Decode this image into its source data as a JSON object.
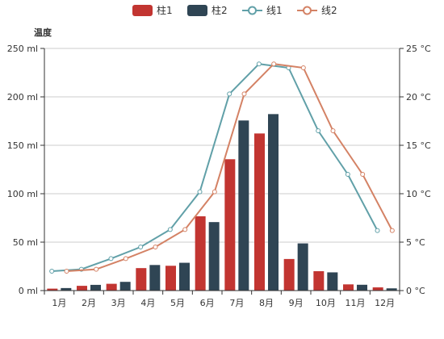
{
  "chart_data": {
    "type": "bar",
    "categories": [
      "1月",
      "2月",
      "3月",
      "4月",
      "5月",
      "6月",
      "7月",
      "8月",
      "9月",
      "10月",
      "11月",
      "12月"
    ],
    "series": [
      {
        "name": "柱1",
        "type": "bar",
        "axis": "left",
        "color": "#c23531",
        "values": [
          2.0,
          4.9,
          7.0,
          23.2,
          25.6,
          76.7,
          135.6,
          162.2,
          32.6,
          20.0,
          6.4,
          3.3
        ]
      },
      {
        "name": "柱2",
        "type": "bar",
        "axis": "left",
        "color": "#2f4554",
        "values": [
          2.6,
          5.9,
          9.0,
          26.4,
          28.7,
          70.7,
          175.6,
          182.2,
          48.7,
          18.8,
          6.0,
          2.3
        ]
      },
      {
        "name": "线1",
        "type": "line",
        "axis": "right",
        "color": "#61a0a8",
        "values": [
          2.0,
          2.2,
          3.3,
          4.5,
          6.3,
          10.2,
          20.3,
          23.4,
          23.0,
          16.5,
          12.0,
          6.2
        ]
      },
      {
        "name": "线2",
        "type": "line",
        "axis": "right",
        "color": "#d48265",
        "values": [
          2.0,
          2.2,
          3.3,
          4.5,
          6.3,
          10.2,
          20.3,
          23.4,
          23.0,
          16.5,
          12.0,
          6.2
        ]
      }
    ],
    "left_axis": {
      "label": "温度",
      "min": 0,
      "max": 250,
      "ticks": [
        0,
        50,
        100,
        150,
        200,
        250
      ],
      "unit": " ml"
    },
    "right_axis": {
      "min": 0,
      "max": 25,
      "ticks": [
        0,
        5,
        10,
        15,
        20,
        25
      ],
      "unit": " °C"
    },
    "grid": true,
    "legend_position": "top-center"
  }
}
